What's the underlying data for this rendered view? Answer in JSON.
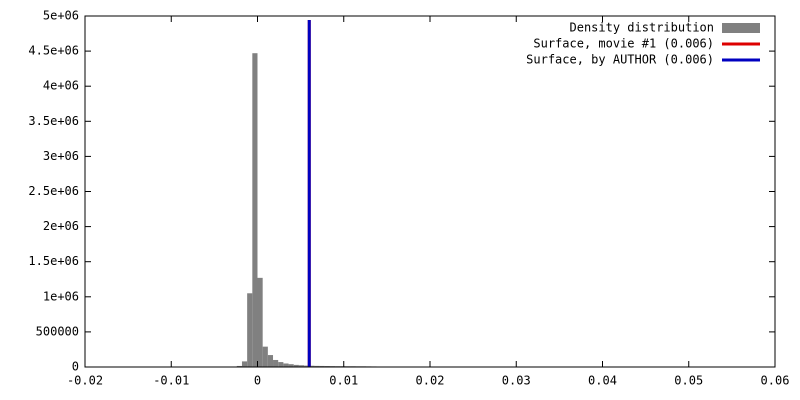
{
  "chart_data": {
    "type": "histogram",
    "bins": [
      -0.003,
      -0.0024,
      -0.0018,
      -0.0012,
      -0.0006,
      0,
      0.0006,
      0.0012,
      0.0018,
      0.0024,
      0.003,
      0.0036,
      0.0042,
      0.0048,
      0.0054,
      0.006,
      0.0066,
      0.0072,
      0.0078,
      0.0084,
      0.009,
      0.0096,
      0.0102,
      0.0108,
      0.0114,
      0.012,
      0.0126,
      0.0132,
      0.0138,
      0.0144,
      0.015
    ],
    "series": [
      {
        "name": "Density distribution",
        "color": "#808080",
        "values": [
          5000,
          15000,
          80000,
          1050000,
          4470000,
          1270000,
          290000,
          170000,
          100000,
          70000,
          50000,
          40000,
          30000,
          25000,
          20000,
          18000,
          16000,
          15000,
          14000,
          13000,
          12000,
          12000,
          11000,
          11000,
          10000,
          10000,
          9000,
          8000,
          6000,
          4000
        ]
      }
    ],
    "lines": [
      {
        "name": "Surface, movie #1 (0.006)",
        "color": "#dd0000",
        "x": 0.006
      },
      {
        "name": "Surface, by AUTHOR (0.006)",
        "color": "#0000c0",
        "x": 0.006
      }
    ],
    "xlim": [
      -0.02,
      0.06
    ],
    "xticks": [
      -0.02,
      -0.01,
      0,
      0.01,
      0.02,
      0.03,
      0.04,
      0.05,
      0.06
    ],
    "ylim": [
      0,
      5000000
    ],
    "yticks": [
      0,
      500000,
      {
        "value": 1000000,
        "label": "1e+06"
      },
      {
        "value": 1500000,
        "label": "1.5e+06"
      },
      {
        "value": 2000000,
        "label": "2e+06"
      },
      {
        "value": 2500000,
        "label": "2.5e+06"
      },
      {
        "value": 3000000,
        "label": "3e+06"
      },
      {
        "value": 3500000,
        "label": "3.5e+06"
      },
      {
        "value": 4000000,
        "label": "4e+06"
      },
      {
        "value": 4500000,
        "label": "4.5e+06"
      },
      {
        "value": 5000000,
        "label": "5e+06"
      }
    ],
    "legend": "top-right"
  }
}
